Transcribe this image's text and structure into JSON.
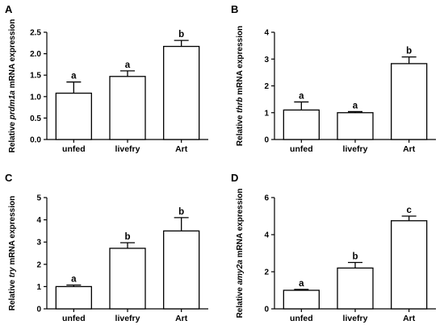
{
  "chart_data": [
    {
      "panel": "A",
      "type": "bar",
      "categories": [
        "unfed",
        "livefry",
        "Art"
      ],
      "values": [
        1.08,
        1.47,
        2.17
      ],
      "errors": [
        0.26,
        0.13,
        0.14
      ],
      "significance": [
        "a",
        "a",
        "b"
      ],
      "ylabel_pre": "Relative ",
      "ylabel_gene": "prdm1a",
      "ylabel_post": " mRNA expression",
      "ylim": [
        0,
        2.5
      ],
      "yticks": [
        "0.0",
        "0.5",
        "1.0",
        "1.5",
        "2.0",
        "2.5"
      ]
    },
    {
      "panel": "B",
      "type": "bar",
      "categories": [
        "unfed",
        "livefry",
        "Art"
      ],
      "values": [
        1.1,
        1.0,
        2.83
      ],
      "errors": [
        0.3,
        0.04,
        0.25
      ],
      "significance": [
        "a",
        "a",
        "b"
      ],
      "ylabel_pre": "Relative ",
      "ylabel_gene": "thrb",
      "ylabel_post": " mRNA expression",
      "ylim": [
        0,
        4
      ],
      "yticks": [
        "0",
        "1",
        "2",
        "3",
        "4"
      ]
    },
    {
      "panel": "C",
      "type": "bar",
      "categories": [
        "unfed",
        "livefry",
        "Art"
      ],
      "values": [
        1.0,
        2.72,
        3.5
      ],
      "errors": [
        0.07,
        0.25,
        0.6
      ],
      "significance": [
        "a",
        "b",
        "b"
      ],
      "ylabel_pre": "Relative ",
      "ylabel_gene": "try",
      "ylabel_post": " mRNA expression",
      "ylim": [
        0,
        5
      ],
      "yticks": [
        "0",
        "1",
        "2",
        "3",
        "4",
        "5"
      ]
    },
    {
      "panel": "D",
      "type": "bar",
      "categories": [
        "unfed",
        "livefry",
        "Art"
      ],
      "values": [
        1.0,
        2.2,
        4.75
      ],
      "errors": [
        0.05,
        0.3,
        0.25
      ],
      "significance": [
        "a",
        "b",
        "c"
      ],
      "ylabel_pre": "Relative ",
      "ylabel_gene": "amy2a",
      "ylabel_post": " mRNA expression",
      "ylim": [
        0,
        6
      ],
      "yticks": [
        "0",
        "2",
        "4",
        "6"
      ]
    }
  ]
}
